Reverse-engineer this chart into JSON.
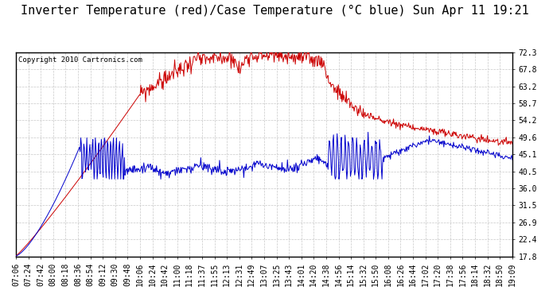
{
  "title": "Inverter Temperature (red)/Case Temperature (°C blue) Sun Apr 11 19:21",
  "copyright": "Copyright 2010 Cartronics.com",
  "y_ticks": [
    17.8,
    22.4,
    26.9,
    31.5,
    36.0,
    40.5,
    45.1,
    49.6,
    54.2,
    58.7,
    63.2,
    67.8,
    72.3
  ],
  "x_labels": [
    "07:06",
    "07:24",
    "07:42",
    "08:00",
    "08:18",
    "08:36",
    "08:54",
    "09:12",
    "09:30",
    "09:48",
    "10:06",
    "10:24",
    "10:42",
    "11:00",
    "11:18",
    "11:37",
    "11:55",
    "12:13",
    "12:31",
    "12:49",
    "13:07",
    "13:25",
    "13:43",
    "14:01",
    "14:20",
    "14:38",
    "14:56",
    "15:14",
    "15:32",
    "15:50",
    "16:08",
    "16:26",
    "16:44",
    "17:02",
    "17:20",
    "17:38",
    "17:56",
    "18:14",
    "18:32",
    "18:50",
    "19:09"
  ],
  "bg_color": "#ffffff",
  "plot_bg_color": "#ffffff",
  "grid_color": "#c8c8c8",
  "red_color": "#cc0000",
  "blue_color": "#0000cc",
  "title_fontsize": 11,
  "copyright_fontsize": 6.5,
  "tick_fontsize": 7
}
